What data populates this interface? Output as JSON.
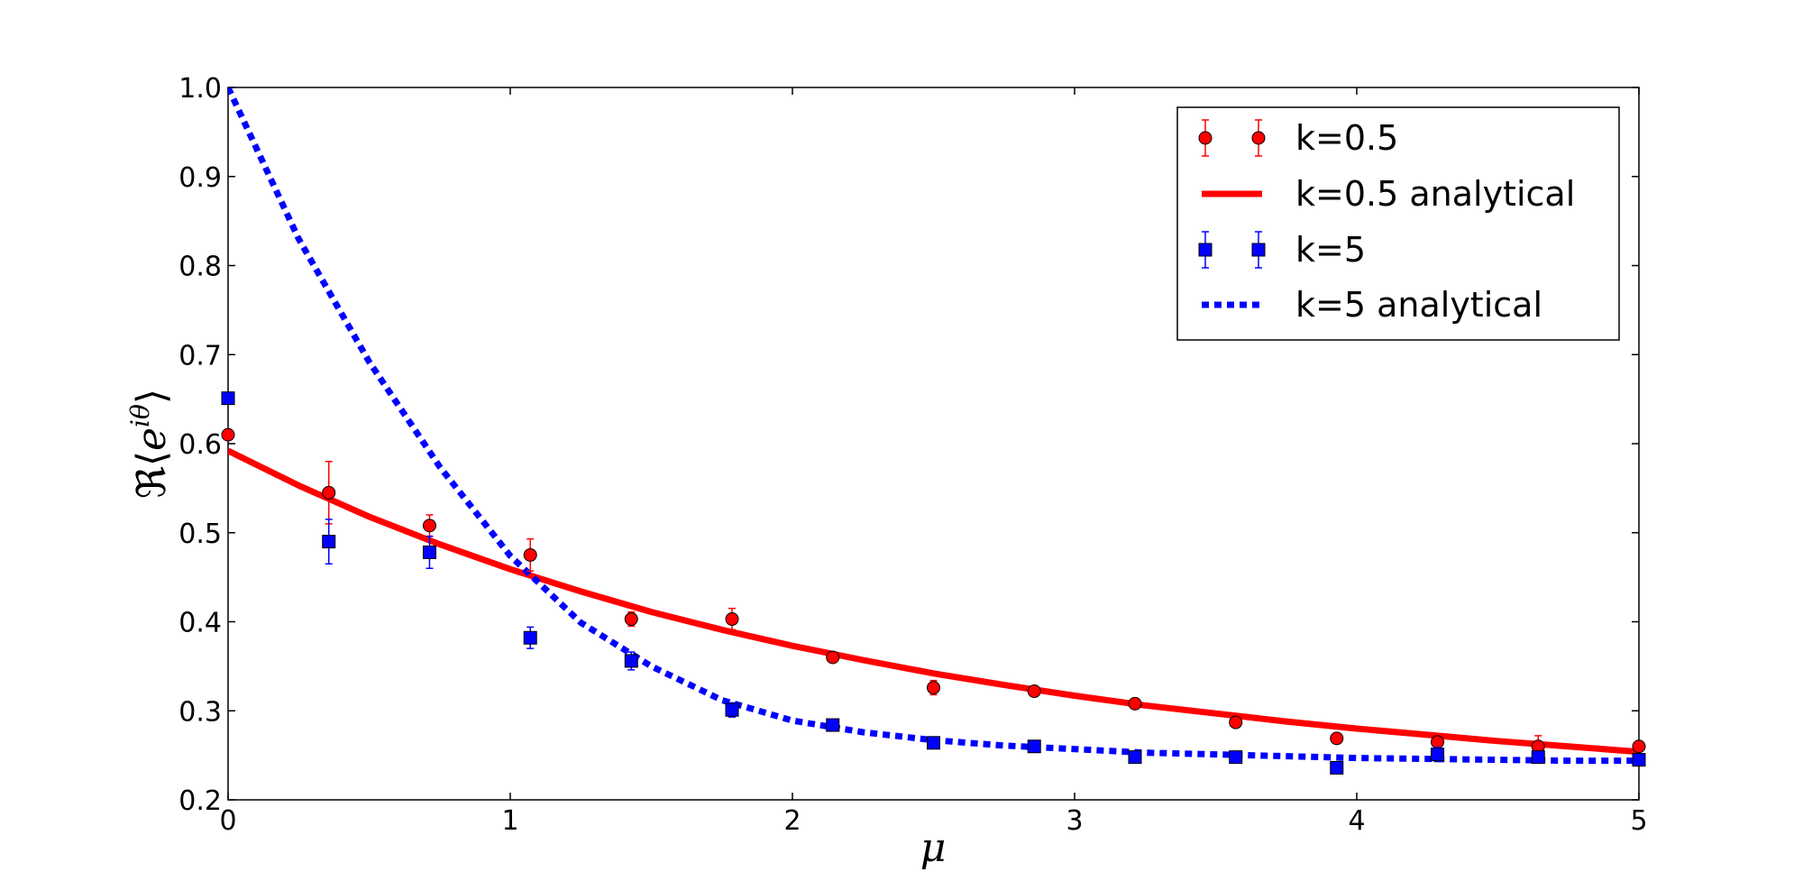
{
  "chart_data": {
    "type": "scatter",
    "xlabel": "μ",
    "ylabel": "ℜ⟨e^{iθ}⟩",
    "xlim": [
      0,
      5
    ],
    "ylim": [
      0.2,
      1.0
    ],
    "xticks": [
      "0",
      "1",
      "2",
      "3",
      "4",
      "5"
    ],
    "yticks": [
      "0.2",
      "0.3",
      "0.4",
      "0.5",
      "0.6",
      "0.7",
      "0.8",
      "0.9",
      "1.0"
    ],
    "grid": false,
    "legend_position": "top-right",
    "series": [
      {
        "name": "k=0.5",
        "kind": "markers",
        "marker": "circle",
        "color": "#ff0000",
        "x": [
          0,
          0.357,
          0.714,
          1.071,
          1.429,
          1.786,
          2.143,
          2.5,
          2.857,
          3.214,
          3.571,
          3.929,
          4.286,
          4.643,
          5.0
        ],
        "y": [
          0.61,
          0.545,
          0.508,
          0.475,
          0.403,
          0.403,
          0.36,
          0.326,
          0.322,
          0.308,
          0.287,
          0.269,
          0.265,
          0.26,
          0.26
        ],
        "err": [
          0.005,
          0.035,
          0.012,
          0.018,
          0.008,
          0.012,
          0.004,
          0.008,
          0.004,
          0.004,
          0.004,
          0.004,
          0.004,
          0.012,
          0.004
        ]
      },
      {
        "name": "k=0.5 analytical",
        "kind": "line",
        "style": "solid",
        "color": "#ff0000",
        "x": [
          0,
          0.25,
          0.5,
          0.75,
          1.0,
          1.25,
          1.5,
          1.75,
          2.0,
          2.25,
          2.5,
          2.75,
          3.0,
          3.25,
          3.5,
          3.75,
          4.0,
          4.25,
          4.5,
          4.75,
          5.0
        ],
        "y": [
          0.592,
          0.553,
          0.518,
          0.487,
          0.459,
          0.434,
          0.411,
          0.391,
          0.373,
          0.357,
          0.342,
          0.329,
          0.317,
          0.306,
          0.297,
          0.288,
          0.28,
          0.273,
          0.266,
          0.26,
          0.254
        ]
      },
      {
        "name": "k=5",
        "kind": "markers",
        "marker": "square",
        "color": "#0000ff",
        "x": [
          0,
          0.357,
          0.714,
          1.071,
          1.429,
          1.786,
          2.143,
          2.5,
          2.857,
          3.214,
          3.571,
          3.929,
          4.286,
          4.643,
          5.0
        ],
        "y": [
          0.651,
          0.49,
          0.478,
          0.382,
          0.356,
          0.301,
          0.284,
          0.264,
          0.26,
          0.248,
          0.248,
          0.236,
          0.251,
          0.248,
          0.245
        ],
        "err": [
          0.005,
          0.025,
          0.018,
          0.012,
          0.01,
          0.008,
          0.005,
          0.005,
          0.005,
          0.005,
          0.005,
          0.005,
          0.008,
          0.005,
          0.005
        ]
      },
      {
        "name": "k=5 analytical",
        "kind": "line",
        "style": "dotted",
        "color": "#0000ff",
        "x": [
          0,
          0.25,
          0.5,
          0.75,
          1.0,
          1.25,
          1.5,
          1.75,
          2.0,
          2.25,
          2.5,
          2.75,
          3.0,
          3.25,
          3.5,
          3.75,
          4.0,
          4.25,
          4.5,
          4.75,
          5.0
        ],
        "y": [
          1.0,
          0.83,
          0.692,
          0.574,
          0.474,
          0.399,
          0.35,
          0.312,
          0.289,
          0.276,
          0.267,
          0.261,
          0.257,
          0.253,
          0.251,
          0.249,
          0.247,
          0.246,
          0.245,
          0.244,
          0.244
        ]
      }
    ]
  }
}
